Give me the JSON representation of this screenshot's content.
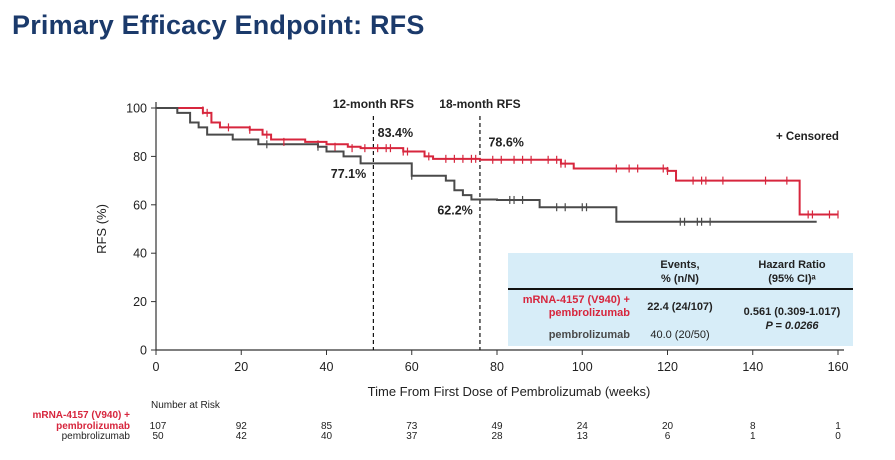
{
  "page": {
    "title": "Primary Efficacy Endpoint: RFS"
  },
  "chart_data": {
    "type": "line",
    "title": "Primary Efficacy Endpoint: RFS",
    "xlabel": "Time From First Dose of Pembrolizumab (weeks)",
    "ylabel": "RFS (%)",
    "xlim": [
      0,
      160
    ],
    "ylim": [
      0,
      100
    ],
    "xticks": [
      0,
      20,
      40,
      60,
      80,
      100,
      120,
      140,
      160
    ],
    "yticks": [
      0,
      20,
      40,
      60,
      80,
      100
    ],
    "legend": "+ Censored",
    "colors": {
      "combo": "#d7263d",
      "mono": "#4a4a4a",
      "table_bg": "#d7edf8",
      "title": "#1b3a6b"
    },
    "series": [
      {
        "name": "mRNA-4157 (V940) + pembrolizumab",
        "steps": [
          [
            0,
            100
          ],
          [
            11,
            98
          ],
          [
            13,
            94
          ],
          [
            15,
            92
          ],
          [
            22,
            91
          ],
          [
            25,
            89
          ],
          [
            27,
            87
          ],
          [
            35,
            86
          ],
          [
            40,
            85
          ],
          [
            45,
            84
          ],
          [
            48,
            83.4
          ],
          [
            58,
            82
          ],
          [
            63,
            80
          ],
          [
            65,
            79
          ],
          [
            76,
            78.6
          ],
          [
            95,
            77
          ],
          [
            98,
            75
          ],
          [
            120,
            74
          ],
          [
            122,
            70
          ],
          [
            150,
            70
          ],
          [
            151,
            56
          ],
          [
            160,
            56
          ]
        ],
        "censored": [
          [
            11,
            99
          ],
          [
            12,
            98
          ],
          [
            17,
            92
          ],
          [
            22,
            91
          ],
          [
            26,
            89
          ],
          [
            30,
            86
          ],
          [
            38,
            85
          ],
          [
            42,
            84
          ],
          [
            46,
            83.4
          ],
          [
            49,
            83.4
          ],
          [
            52,
            83.4
          ],
          [
            54,
            83.4
          ],
          [
            55,
            83.4
          ],
          [
            58,
            82
          ],
          [
            59,
            82
          ],
          [
            64,
            80
          ],
          [
            68,
            79
          ],
          [
            70,
            79
          ],
          [
            72,
            79
          ],
          [
            74,
            79
          ],
          [
            75,
            79
          ],
          [
            79,
            78.6
          ],
          [
            81,
            78.6
          ],
          [
            84,
            78.6
          ],
          [
            86,
            78.6
          ],
          [
            88,
            78.6
          ],
          [
            92,
            78.6
          ],
          [
            94,
            78.6
          ],
          [
            95,
            77
          ],
          [
            96,
            77
          ],
          [
            108,
            75
          ],
          [
            111,
            75
          ],
          [
            113,
            75
          ],
          [
            119,
            75
          ],
          [
            120,
            74
          ],
          [
            126,
            70
          ],
          [
            128,
            70
          ],
          [
            129,
            70
          ],
          [
            133,
            70
          ],
          [
            143,
            70
          ],
          [
            148,
            70
          ],
          [
            153,
            56
          ],
          [
            154,
            56
          ],
          [
            158,
            56
          ],
          [
            160,
            56
          ]
        ]
      },
      {
        "name": "pembrolizumab",
        "steps": [
          [
            0,
            100
          ],
          [
            5,
            98
          ],
          [
            8,
            94
          ],
          [
            10,
            92
          ],
          [
            12,
            89
          ],
          [
            18,
            87
          ],
          [
            24,
            85
          ],
          [
            38,
            84
          ],
          [
            40,
            82
          ],
          [
            44,
            80
          ],
          [
            48,
            77.1
          ],
          [
            60,
            72
          ],
          [
            68,
            70
          ],
          [
            70,
            66
          ],
          [
            72,
            64
          ],
          [
            74,
            62.2
          ],
          [
            80,
            62
          ],
          [
            90,
            59
          ],
          [
            108,
            53
          ],
          [
            120,
            53
          ],
          [
            155,
            53
          ]
        ],
        "censored": [
          [
            26,
            85
          ],
          [
            38,
            84
          ],
          [
            60,
            72
          ],
          [
            83,
            62
          ],
          [
            84,
            62
          ],
          [
            86,
            62
          ],
          [
            94,
            59
          ],
          [
            96,
            59
          ],
          [
            100,
            59
          ],
          [
            101,
            59
          ],
          [
            123,
            53
          ],
          [
            124,
            53
          ],
          [
            127,
            53
          ],
          [
            128,
            53
          ],
          [
            130,
            53
          ]
        ]
      }
    ],
    "reference_lines": [
      {
        "x": 51,
        "label": "12-month RFS"
      },
      {
        "x": 76,
        "label": "18-month RFS"
      }
    ],
    "annotations": [
      {
        "text": "83.4%",
        "x": 52,
        "y": 88
      },
      {
        "text": "77.1%",
        "x": 41,
        "y": 71
      },
      {
        "text": "78.6%",
        "x": 78,
        "y": 84
      },
      {
        "text": "62.2%",
        "x": 66,
        "y": 56
      }
    ],
    "hr_table": {
      "col_events": [
        "Events,",
        "% (n/N)"
      ],
      "col_hr": [
        "Hazard Ratio",
        "(95% CI)ᵃ"
      ],
      "row1_label": [
        "mRNA-4157 (V940) +",
        "pembrolizumab"
      ],
      "row1_events": "22.4 (24/107)",
      "row2_label": "pembrolizumab",
      "row2_events": "40.0 (20/50)",
      "hr_value": "0.561 (0.309-1.017)",
      "p_value": "P = 0.0266"
    },
    "risk_table": {
      "title": "Number at Risk",
      "combo_label": [
        "mRNA-4157 (V940) +",
        "pembrolizumab"
      ],
      "mono_label": "pembrolizumab",
      "combo": [
        "107",
        "92",
        "85",
        "73",
        "49",
        "24",
        "20",
        "8",
        "1"
      ],
      "mono": [
        "50",
        "42",
        "40",
        "37",
        "28",
        "13",
        "6",
        "1",
        "0"
      ]
    }
  }
}
